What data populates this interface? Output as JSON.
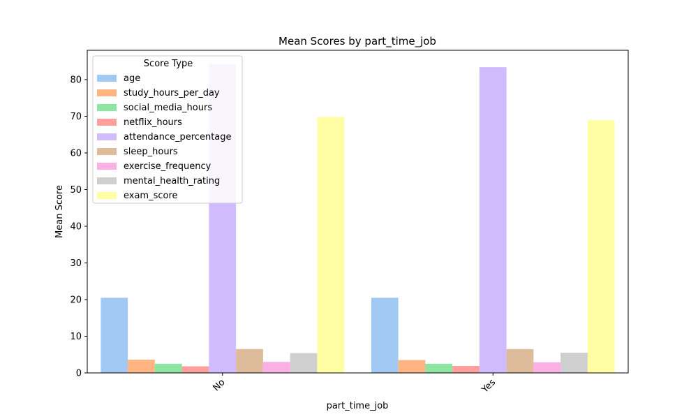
{
  "chart_data": {
    "type": "bar",
    "title": "Mean Scores by part_time_job",
    "xlabel": "part_time_job",
    "ylabel": "Mean Score",
    "categories": [
      "No",
      "Yes"
    ],
    "ylim": [
      0,
      88
    ],
    "yticks": [
      0,
      10,
      20,
      30,
      40,
      50,
      60,
      70,
      80
    ],
    "grid": false,
    "legend": {
      "title": "Score Type",
      "placement": "top-left"
    },
    "series": [
      {
        "name": "age",
        "color": "#a1c9f4",
        "values": [
          20.5,
          20.5
        ]
      },
      {
        "name": "study_hours_per_day",
        "color": "#ffb482",
        "values": [
          3.6,
          3.5
        ]
      },
      {
        "name": "social_media_hours",
        "color": "#8de5a1",
        "values": [
          2.5,
          2.5
        ]
      },
      {
        "name": "netflix_hours",
        "color": "#ff9f9b",
        "values": [
          1.8,
          1.9
        ]
      },
      {
        "name": "attendance_percentage",
        "color": "#d0bbff",
        "values": [
          84.3,
          83.4
        ]
      },
      {
        "name": "sleep_hours",
        "color": "#debb9b",
        "values": [
          6.5,
          6.5
        ]
      },
      {
        "name": "exercise_frequency",
        "color": "#fab0e4",
        "values": [
          3.0,
          2.9
        ]
      },
      {
        "name": "mental_health_rating",
        "color": "#cfcfcf",
        "values": [
          5.4,
          5.5
        ]
      },
      {
        "name": "exam_score",
        "color": "#fffea3",
        "values": [
          69.8,
          68.9
        ]
      }
    ]
  }
}
